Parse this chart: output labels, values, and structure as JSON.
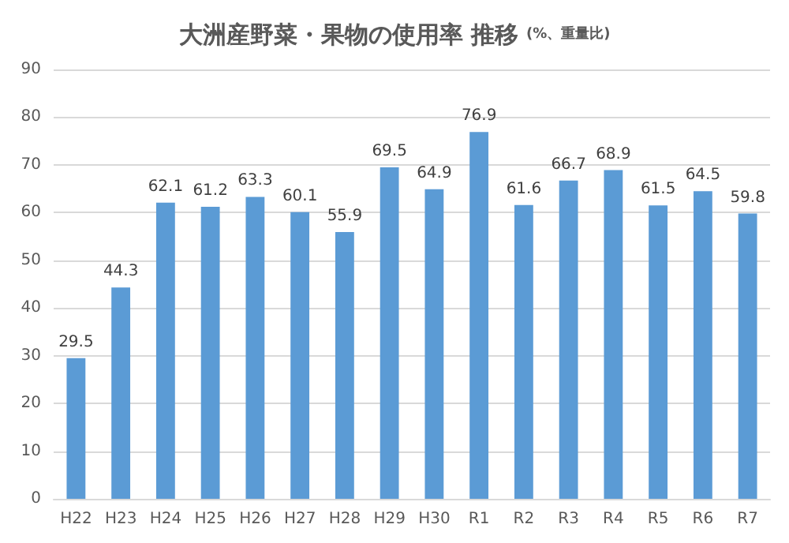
{
  "chart_data": {
    "type": "bar",
    "title": "大洲産野菜・果物の使用率 推移",
    "subtitle": "(%、重量比)",
    "categories": [
      "H22",
      "H23",
      "H24",
      "H25",
      "H26",
      "H27",
      "H28",
      "H29",
      "H30",
      "R1",
      "R2",
      "R3",
      "R4",
      "R5",
      "R6",
      "R7"
    ],
    "values": [
      29.5,
      44.3,
      62.1,
      61.2,
      63.3,
      60.1,
      55.9,
      69.5,
      64.9,
      76.9,
      61.6,
      66.7,
      68.9,
      61.5,
      64.5,
      59.8
    ],
    "color": "#5b9bd5",
    "data_labels": true,
    "ylim": [
      0,
      90
    ],
    "yticks": [
      0,
      10,
      20,
      30,
      40,
      50,
      60,
      70,
      80,
      90
    ],
    "grid": "y"
  }
}
